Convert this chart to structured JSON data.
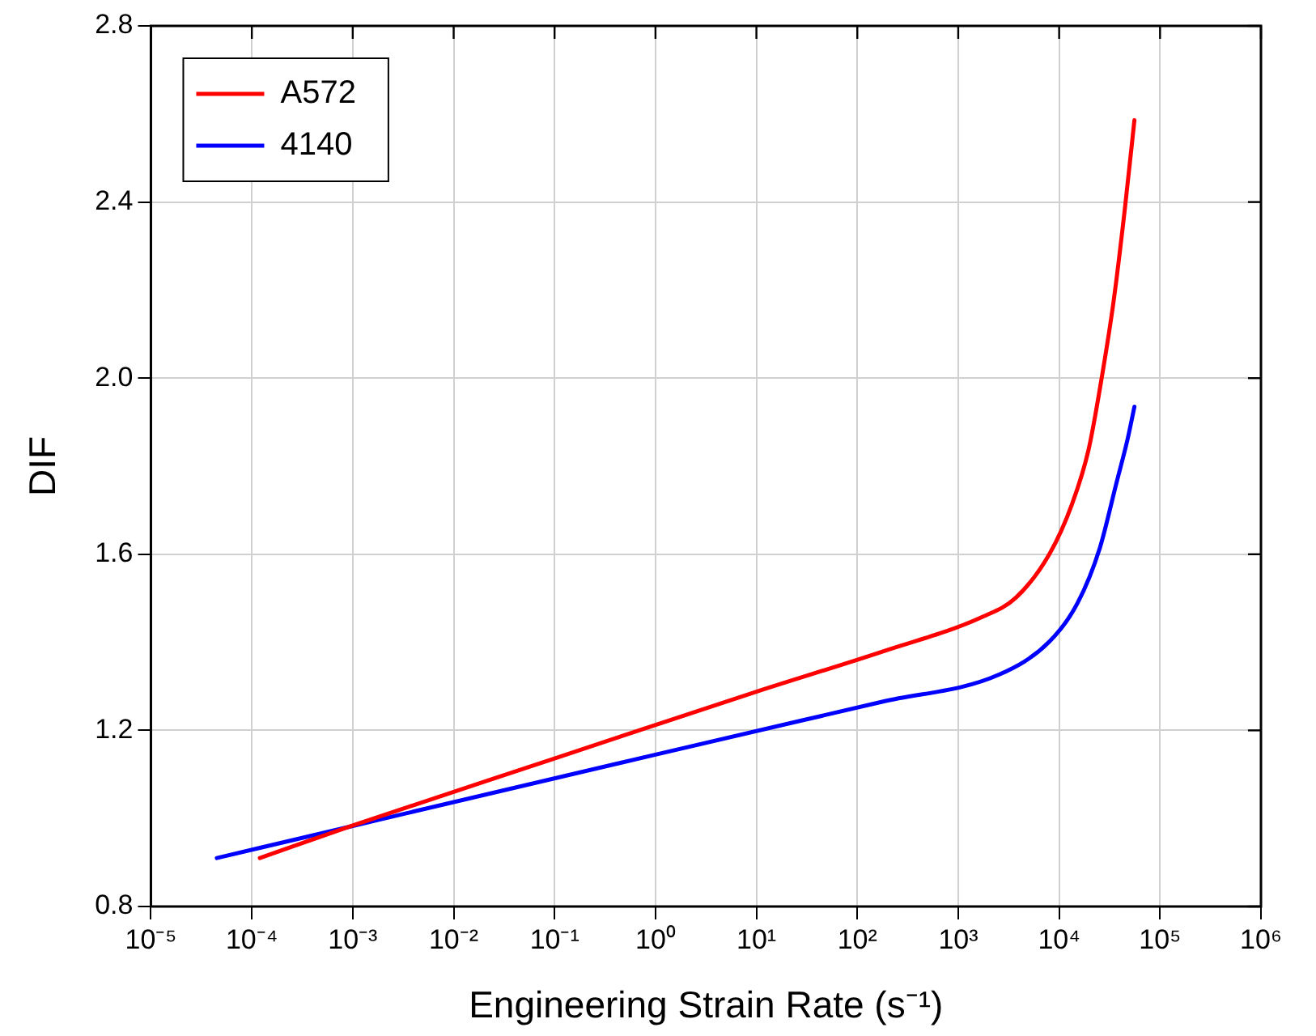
{
  "chart_data": {
    "type": "line",
    "xlabel": "Engineering Strain Rate (s⁻¹)",
    "ylabel": "DIF",
    "log": "x",
    "xlim": [
      1e-05,
      1000000
    ],
    "xticks": [
      {
        "value": 1e-05,
        "label": "10⁻⁵"
      },
      {
        "value": 0.0001,
        "label": "10⁻⁴"
      },
      {
        "value": 0.001,
        "label": "10⁻³"
      },
      {
        "value": 0.01,
        "label": "10⁻²"
      },
      {
        "value": 0.1,
        "label": "10⁻¹"
      },
      {
        "value": 1,
        "label": "10⁰"
      },
      {
        "value": 10,
        "label": "10¹"
      },
      {
        "value": 100,
        "label": "10²"
      },
      {
        "value": 1000,
        "label": "10³"
      },
      {
        "value": 10000,
        "label": "10⁴"
      },
      {
        "value": 100000,
        "label": "10⁵"
      },
      {
        "value": 1000000,
        "label": "10⁶"
      }
    ],
    "ylim": [
      0.8,
      2.8
    ],
    "yticks": [
      {
        "value": 0.8,
        "label": "0.8"
      },
      {
        "value": 1.2,
        "label": "1.2"
      },
      {
        "value": 1.6,
        "label": "1.6"
      },
      {
        "value": 2.0,
        "label": "2.0"
      },
      {
        "value": 2.4,
        "label": "2.4"
      },
      {
        "value": 2.8,
        "label": "2.8"
      }
    ],
    "grid": true,
    "legend": "top left",
    "marker": "none",
    "line_style": "solid",
    "series": [
      {
        "name": "A572",
        "color": "#ff0000",
        "x": [
          0.00012,
          0.001,
          0.1,
          10,
          177,
          1746,
          3750,
          8035,
          13370,
          19590,
          26920,
          34670,
          44870,
          55720
        ],
        "values": [
          0.91,
          0.984,
          1.136,
          1.288,
          1.379,
          1.458,
          1.502,
          1.601,
          1.713,
          1.838,
          2.012,
          2.175,
          2.386,
          2.586
        ]
      },
      {
        "name": "4140",
        "color": "#0000ff",
        "x": [
          4.5e-05,
          0.001,
          1,
          177,
          2560,
          8035,
          15210,
          25290,
          37070,
          47860,
          55720
        ],
        "values": [
          0.91,
          0.983,
          1.145,
          1.265,
          1.327,
          1.402,
          1.489,
          1.614,
          1.763,
          1.863,
          1.935
        ]
      }
    ]
  }
}
